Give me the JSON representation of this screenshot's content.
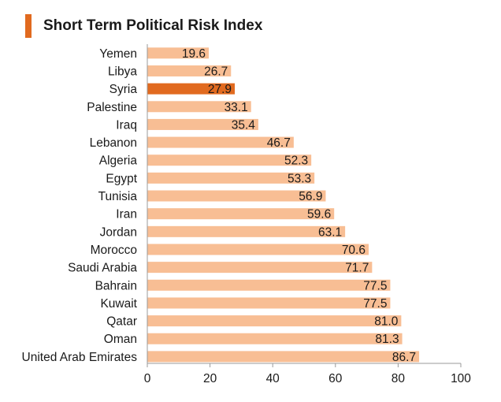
{
  "title": "Short Term Political Risk Index",
  "colors": {
    "bar": "#f8be94",
    "highlight": "#e16a1f",
    "axis": "#9a9a9a",
    "title_accent": "#e16a1f"
  },
  "chart_data": {
    "type": "bar",
    "orientation": "horizontal",
    "title": "Short Term Political Risk Index",
    "xlabel": "",
    "ylabel": "",
    "xlim": [
      0,
      100
    ],
    "x_ticks": [
      0,
      20,
      40,
      60,
      80,
      100
    ],
    "x_tick_labels": [
      "0",
      "20",
      "40",
      "60",
      "80",
      "100"
    ],
    "categories": [
      "Yemen",
      "Libya",
      "Syria",
      "Palestine",
      "Iraq",
      "Lebanon",
      "Algeria",
      "Egypt",
      "Tunisia",
      "Iran",
      "Jordan",
      "Morocco",
      "Saudi Arabia",
      "Bahrain",
      "Kuwait",
      "Qatar",
      "Oman",
      "United Arab Emirates"
    ],
    "values": [
      19.6,
      26.7,
      27.9,
      33.1,
      35.4,
      46.7,
      52.3,
      53.3,
      56.9,
      59.6,
      63.1,
      70.6,
      71.7,
      77.5,
      77.5,
      81.0,
      81.3,
      86.7
    ],
    "value_labels": [
      "19.6",
      "26.7",
      "27.9",
      "33.1",
      "35.4",
      "46.7",
      "52.3",
      "53.3",
      "56.9",
      "59.6",
      "63.1",
      "70.6",
      "71.7",
      "77.5",
      "77.5",
      "81.0",
      "81.3",
      "86.7"
    ],
    "highlighted": [
      "Syria"
    ],
    "grid": false
  }
}
